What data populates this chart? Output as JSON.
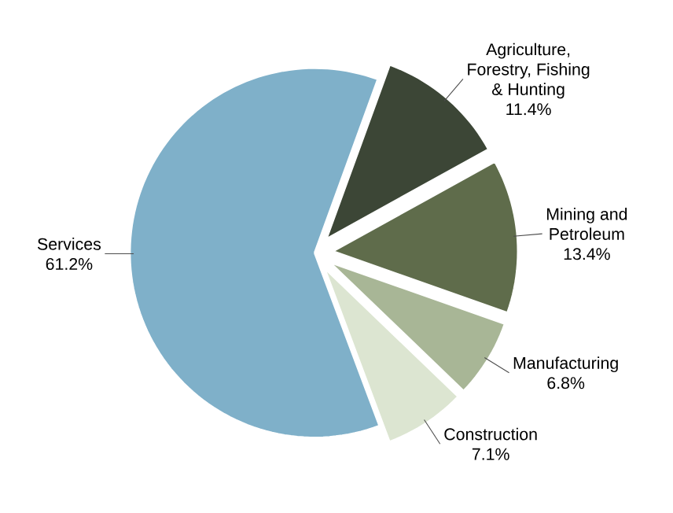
{
  "chart_data": {
    "type": "pie",
    "categories": [
      "Agriculture, Forestry, Fishing & Hunting",
      "Mining and Petroleum",
      "Manufacturing",
      "Construction",
      "Services"
    ],
    "values": [
      11.4,
      13.4,
      6.8,
      7.1,
      61.2
    ],
    "value_labels": [
      "11.4%",
      "13.4%",
      "6.8%",
      "7.1%",
      "61.2%"
    ],
    "colors": [
      "#3c4636",
      "#5f6c4b",
      "#a8b696",
      "#dce5d1",
      "#7fb0c9"
    ],
    "legend": false
  }
}
